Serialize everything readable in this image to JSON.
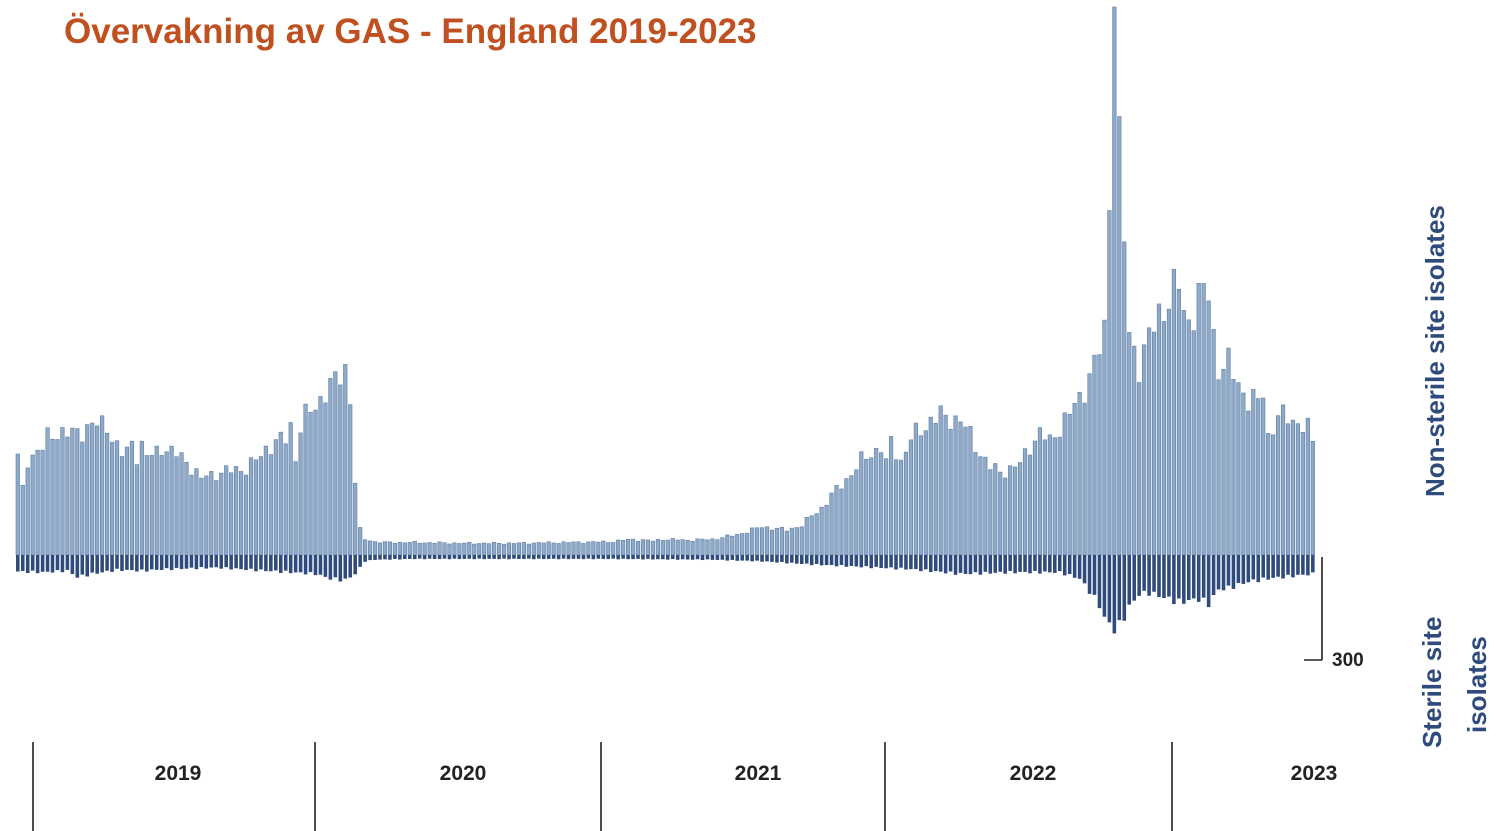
{
  "title": "Övervakning av GAS - England 2019-2023",
  "chart_data": {
    "type": "bar",
    "title": "Övervakning av GAS - England 2019-2023",
    "upper_series_label": "Non-sterile site isolates",
    "lower_series_label_line1": "Sterile site",
    "lower_series_label_line2": "isolates",
    "scale_bar_label": "300",
    "x_categories": [
      "2019",
      "2020",
      "2021",
      "2022",
      "2023"
    ],
    "colors": {
      "upper": "#8fa9c8",
      "upper_edge": "#5e7ea6",
      "lower": "#2f4a7c",
      "title": "#c0501f"
    },
    "series": [
      {
        "name": "Non-sterile site isolates",
        "anchors_week_value": [
          [
            0,
            620
          ],
          [
            1,
            420
          ],
          [
            2,
            610
          ],
          [
            3,
            640
          ],
          [
            5,
            680
          ],
          [
            6,
            750
          ],
          [
            8,
            790
          ],
          [
            10,
            770
          ],
          [
            12,
            780
          ],
          [
            14,
            820
          ],
          [
            16,
            830
          ],
          [
            18,
            830
          ],
          [
            19,
            760
          ],
          [
            20,
            690
          ],
          [
            21,
            640
          ],
          [
            22,
            660
          ],
          [
            23,
            720
          ],
          [
            24,
            640
          ],
          [
            25,
            700
          ],
          [
            26,
            620
          ],
          [
            28,
            660
          ],
          [
            29,
            690
          ],
          [
            30,
            680
          ],
          [
            31,
            650
          ],
          [
            32,
            640
          ],
          [
            33,
            630
          ],
          [
            34,
            600
          ],
          [
            35,
            560
          ],
          [
            36,
            520
          ],
          [
            37,
            480
          ],
          [
            38,
            510
          ],
          [
            40,
            520
          ],
          [
            42,
            530
          ],
          [
            44,
            550
          ],
          [
            46,
            550
          ],
          [
            48,
            600
          ],
          [
            50,
            680
          ],
          [
            52,
            720
          ],
          [
            54,
            740
          ],
          [
            55,
            830
          ],
          [
            56,
            620
          ],
          [
            57,
            820
          ],
          [
            58,
            880
          ],
          [
            60,
            950
          ],
          [
            62,
            1050
          ],
          [
            64,
            1100
          ],
          [
            66,
            1200
          ],
          [
            67,
            1000
          ],
          [
            68,
            470
          ],
          [
            69,
            160
          ],
          [
            70,
            100
          ],
          [
            72,
            85
          ],
          [
            74,
            80
          ],
          [
            80,
            80
          ],
          [
            90,
            75
          ],
          [
            100,
            75
          ],
          [
            110,
            80
          ],
          [
            120,
            85
          ],
          [
            122,
            95
          ],
          [
            124,
            100
          ],
          [
            126,
            95
          ],
          [
            128,
            90
          ],
          [
            130,
            100
          ],
          [
            135,
            95
          ],
          [
            140,
            100
          ],
          [
            145,
            130
          ],
          [
            150,
            180
          ],
          [
            155,
            160
          ],
          [
            158,
            190
          ],
          [
            160,
            250
          ],
          [
            162,
            300
          ],
          [
            164,
            380
          ],
          [
            166,
            450
          ],
          [
            168,
            520
          ],
          [
            170,
            600
          ],
          [
            172,
            650
          ],
          [
            174,
            690
          ],
          [
            175,
            580
          ],
          [
            176,
            720
          ],
          [
            178,
            600
          ],
          [
            180,
            740
          ],
          [
            182,
            800
          ],
          [
            184,
            860
          ],
          [
            186,
            890
          ],
          [
            187,
            870
          ],
          [
            188,
            880
          ],
          [
            190,
            860
          ],
          [
            192,
            760
          ],
          [
            194,
            650
          ],
          [
            196,
            560
          ],
          [
            198,
            530
          ],
          [
            200,
            550
          ],
          [
            202,
            580
          ],
          [
            204,
            700
          ],
          [
            206,
            780
          ],
          [
            208,
            720
          ],
          [
            210,
            820
          ],
          [
            212,
            900
          ],
          [
            214,
            1000
          ],
          [
            216,
            1150
          ],
          [
            218,
            1280
          ],
          [
            219,
            1500
          ],
          [
            220,
            2200
          ],
          [
            221,
            3500
          ],
          [
            222,
            2800
          ],
          [
            223,
            2000
          ],
          [
            224,
            1400
          ],
          [
            226,
            1220
          ],
          [
            228,
            1380
          ],
          [
            230,
            1540
          ],
          [
            232,
            1640
          ],
          [
            234,
            1720
          ],
          [
            235,
            1550
          ],
          [
            236,
            1500
          ],
          [
            238,
            1640
          ],
          [
            240,
            1680
          ],
          [
            241,
            1400
          ],
          [
            242,
            1200
          ],
          [
            244,
            1210
          ],
          [
            246,
            1100
          ],
          [
            248,
            990
          ],
          [
            250,
            970
          ],
          [
            251,
            1050
          ],
          [
            252,
            760
          ],
          [
            254,
            880
          ],
          [
            256,
            880
          ],
          [
            258,
            850
          ],
          [
            260,
            800
          ],
          [
            261,
            720
          ]
        ]
      },
      {
        "name": "Sterile site isolates",
        "anchors_week_value": [
          [
            0,
            105
          ],
          [
            5,
            110
          ],
          [
            10,
            100
          ],
          [
            12,
            140
          ],
          [
            15,
            120
          ],
          [
            20,
            95
          ],
          [
            25,
            100
          ],
          [
            30,
            90
          ],
          [
            35,
            85
          ],
          [
            40,
            80
          ],
          [
            45,
            90
          ],
          [
            50,
            100
          ],
          [
            55,
            110
          ],
          [
            60,
            120
          ],
          [
            63,
            150
          ],
          [
            66,
            160
          ],
          [
            68,
            120
          ],
          [
            70,
            40
          ],
          [
            72,
            30
          ],
          [
            80,
            25
          ],
          [
            100,
            25
          ],
          [
            120,
            25
          ],
          [
            140,
            30
          ],
          [
            150,
            40
          ],
          [
            160,
            60
          ],
          [
            170,
            75
          ],
          [
            180,
            90
          ],
          [
            190,
            120
          ],
          [
            200,
            110
          ],
          [
            210,
            110
          ],
          [
            214,
            150
          ],
          [
            216,
            230
          ],
          [
            218,
            320
          ],
          [
            219,
            400
          ],
          [
            220,
            440
          ],
          [
            221,
            470
          ],
          [
            222,
            450
          ],
          [
            224,
            330
          ],
          [
            226,
            250
          ],
          [
            228,
            240
          ],
          [
            230,
            260
          ],
          [
            232,
            280
          ],
          [
            234,
            300
          ],
          [
            236,
            290
          ],
          [
            238,
            280
          ],
          [
            240,
            310
          ],
          [
            242,
            220
          ],
          [
            244,
            210
          ],
          [
            246,
            190
          ],
          [
            248,
            170
          ],
          [
            250,
            160
          ],
          [
            252,
            150
          ],
          [
            255,
            140
          ],
          [
            258,
            130
          ],
          [
            261,
            120
          ]
        ]
      }
    ],
    "total_weeks": 262,
    "upper_scale_max": 3500,
    "lower_scale_max": 700,
    "legend": "none",
    "grid": false
  }
}
